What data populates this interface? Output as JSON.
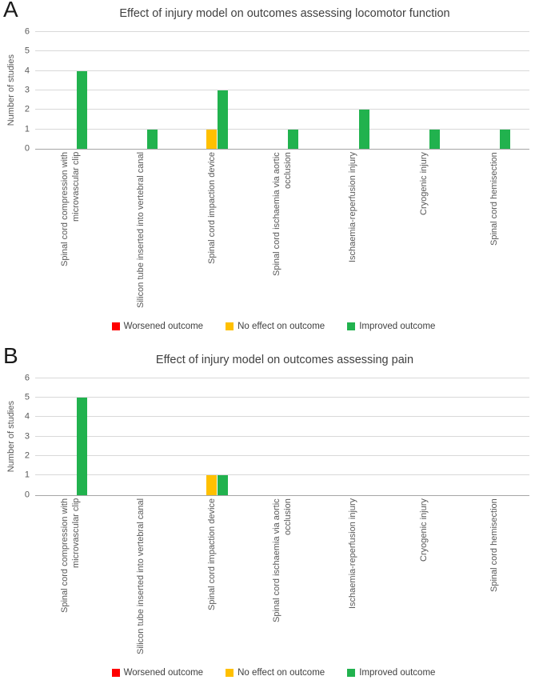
{
  "chart_data": [
    {
      "type": "bar",
      "panel_label": "A",
      "title": "Effect of injury model on outcomes assessing locomotor function",
      "xlabel": "",
      "ylabel": "Number of studies",
      "ylim": [
        0,
        6
      ],
      "yticks": [
        0,
        1,
        2,
        3,
        4,
        5,
        6
      ],
      "grid": true,
      "legend_position": "bottom",
      "categories": [
        "Spinal cord compression with microvascular clip",
        "Silicon tube inserted into vertebral canal",
        "Spinal cord impaction device",
        "Spinal cord ischaemia via aortic occlusion",
        "Ischaemia-reperfusion injury",
        "Cryogenic injury",
        "Spinal cord hemisection"
      ],
      "series": [
        {
          "name": "Worsened outcome",
          "color": "#FF0000",
          "values": [
            0,
            0,
            0,
            0,
            0,
            0,
            0
          ]
        },
        {
          "name": "No effect on outcome",
          "color": "#FFC000",
          "values": [
            0,
            0,
            1,
            0,
            0,
            0,
            0
          ]
        },
        {
          "name": "Improved outcome",
          "color": "#21B24E",
          "values": [
            4,
            1,
            3,
            1,
            2,
            1,
            1
          ]
        }
      ]
    },
    {
      "type": "bar",
      "panel_label": "B",
      "title": "Effect of injury model on outcomes assessing pain",
      "xlabel": "",
      "ylabel": "Number of studies",
      "ylim": [
        0,
        6
      ],
      "yticks": [
        0,
        1,
        2,
        3,
        4,
        5,
        6
      ],
      "grid": true,
      "legend_position": "bottom",
      "categories": [
        "Spinal cord compression with microvascular clip",
        "Silicon tube inserted into vertebral canal",
        "Spinal cord impaction device",
        "Spinal cord ischaemia via aortic occlusion",
        "Ischaemia-reperfusion injury",
        "Cryogenic injury",
        "Spinal cord hemisection"
      ],
      "series": [
        {
          "name": "Worsened outcome",
          "color": "#FF0000",
          "values": [
            0,
            0,
            0,
            0,
            0,
            0,
            0
          ]
        },
        {
          "name": "No effect on outcome",
          "color": "#FFC000",
          "values": [
            0,
            0,
            1,
            0,
            0,
            0,
            0
          ]
        },
        {
          "name": "Improved outcome",
          "color": "#21B24E",
          "values": [
            5,
            0,
            1,
            0,
            0,
            0,
            0
          ]
        }
      ]
    }
  ]
}
